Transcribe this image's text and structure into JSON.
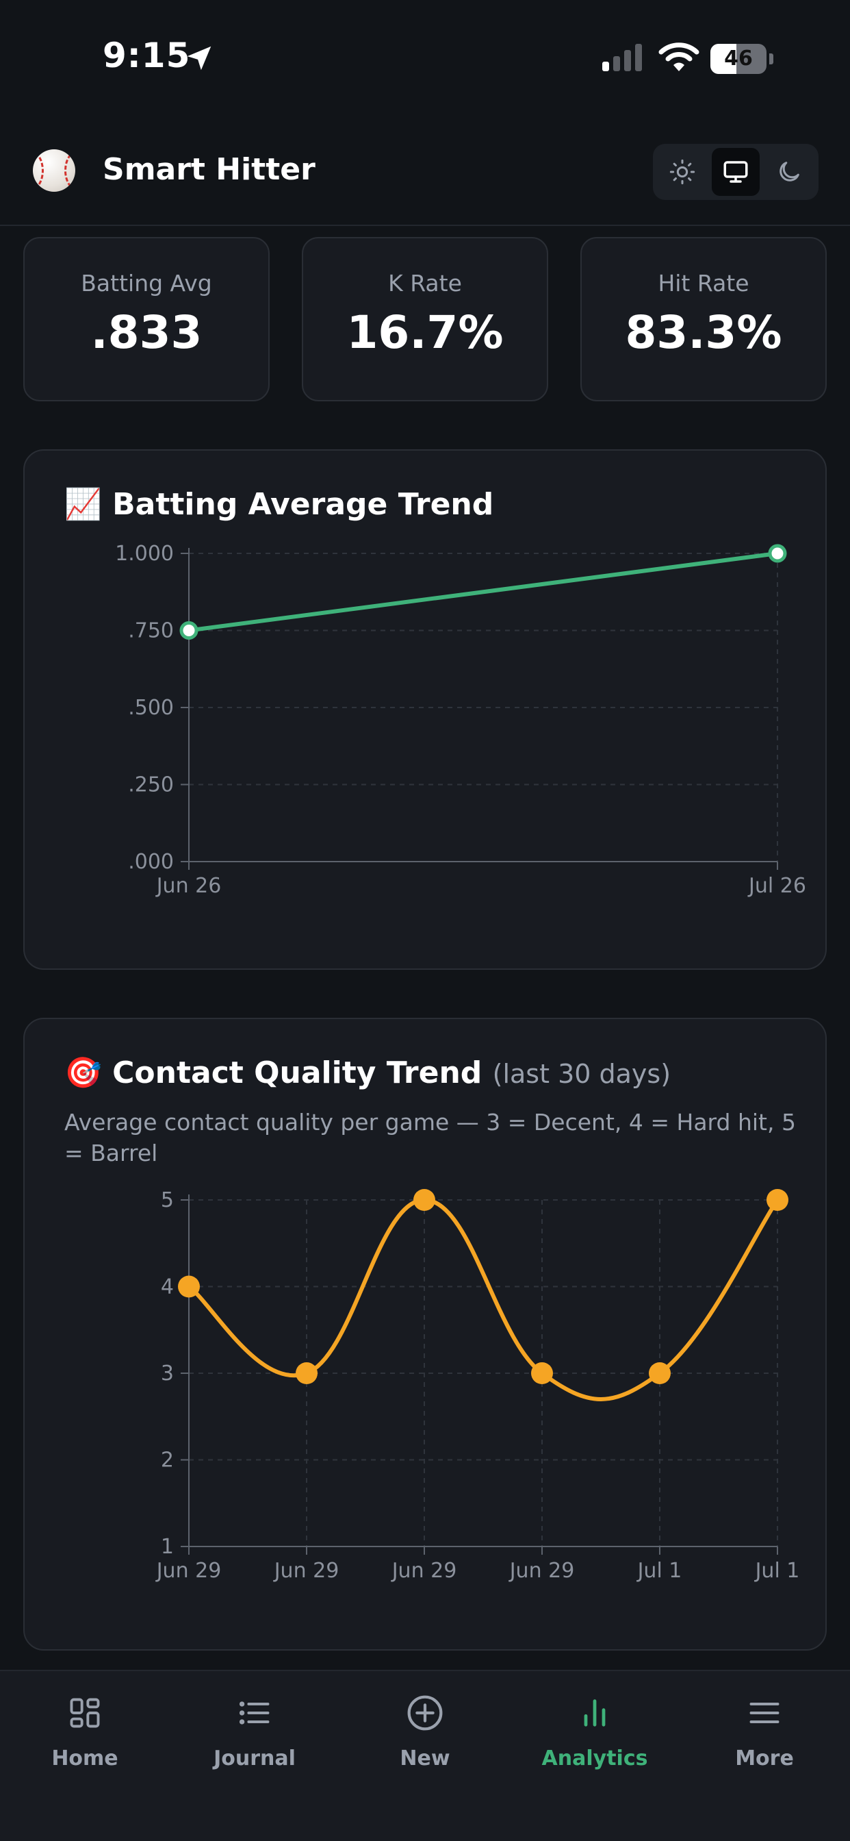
{
  "status_bar": {
    "time": "9:15",
    "battery": "46",
    "battery_level": 0.46
  },
  "header": {
    "title": "Smart Hitter",
    "theme_options": [
      "sun-icon",
      "monitor-icon",
      "moon-icon"
    ],
    "active_theme": "monitor-icon"
  },
  "stats": [
    {
      "label": "Batting Avg",
      "value": ".833"
    },
    {
      "label": "K Rate",
      "value": "16.7%"
    },
    {
      "label": "Hit Rate",
      "value": "83.3%"
    }
  ],
  "batting_card": {
    "emoji": "📈",
    "title": "Batting Average Trend"
  },
  "contact_card": {
    "emoji": "🎯",
    "title": "Contact Quality Trend",
    "title_suffix": "(last 30 days)",
    "subtitle": "Average contact quality per game — 3 = Decent, 4 = Hard hit, 5 = Barrel"
  },
  "chart_data": [
    {
      "type": "line",
      "title": "Batting Average Trend",
      "x": [
        "Jun 26",
        "Jul 26"
      ],
      "series": [
        {
          "values": [
            0.75,
            1.0
          ],
          "color": "#3fb27a"
        }
      ],
      "ylim": [
        0,
        1
      ],
      "y_ticks": [
        "1.000",
        ".750",
        ".500",
        ".250",
        ".000"
      ],
      "x_ticks": [
        "Jun 26",
        "Jul 26"
      ],
      "grid": true
    },
    {
      "type": "line",
      "title": "Contact Quality Trend",
      "x": [
        "Jun 29",
        "Jun 29",
        "Jun 29",
        "Jun 29",
        "Jul 1",
        "Jul 1"
      ],
      "series": [
        {
          "values": [
            4,
            3,
            5,
            3,
            3,
            5
          ],
          "color": "#f5a524"
        }
      ],
      "ylim": [
        1,
        5
      ],
      "y_ticks": [
        "5",
        "4",
        "3",
        "2",
        "1"
      ],
      "x_ticks": [
        "Jun 29",
        "Jun 29",
        "Jun 29",
        "Jun 29",
        "Jul 1",
        "Jul 1"
      ],
      "grid": true
    }
  ],
  "nav": [
    {
      "label": "Home",
      "icon": "grid-icon"
    },
    {
      "label": "Journal",
      "icon": "list-icon"
    },
    {
      "label": "New",
      "icon": "plus-circle-icon"
    },
    {
      "label": "Analytics",
      "icon": "bar-chart-icon",
      "active": true
    },
    {
      "label": "More",
      "icon": "menu-icon"
    }
  ],
  "colors": {
    "accent": "#3fb27a",
    "orange": "#f5a524",
    "background": "#111418",
    "card": "#181b21"
  }
}
